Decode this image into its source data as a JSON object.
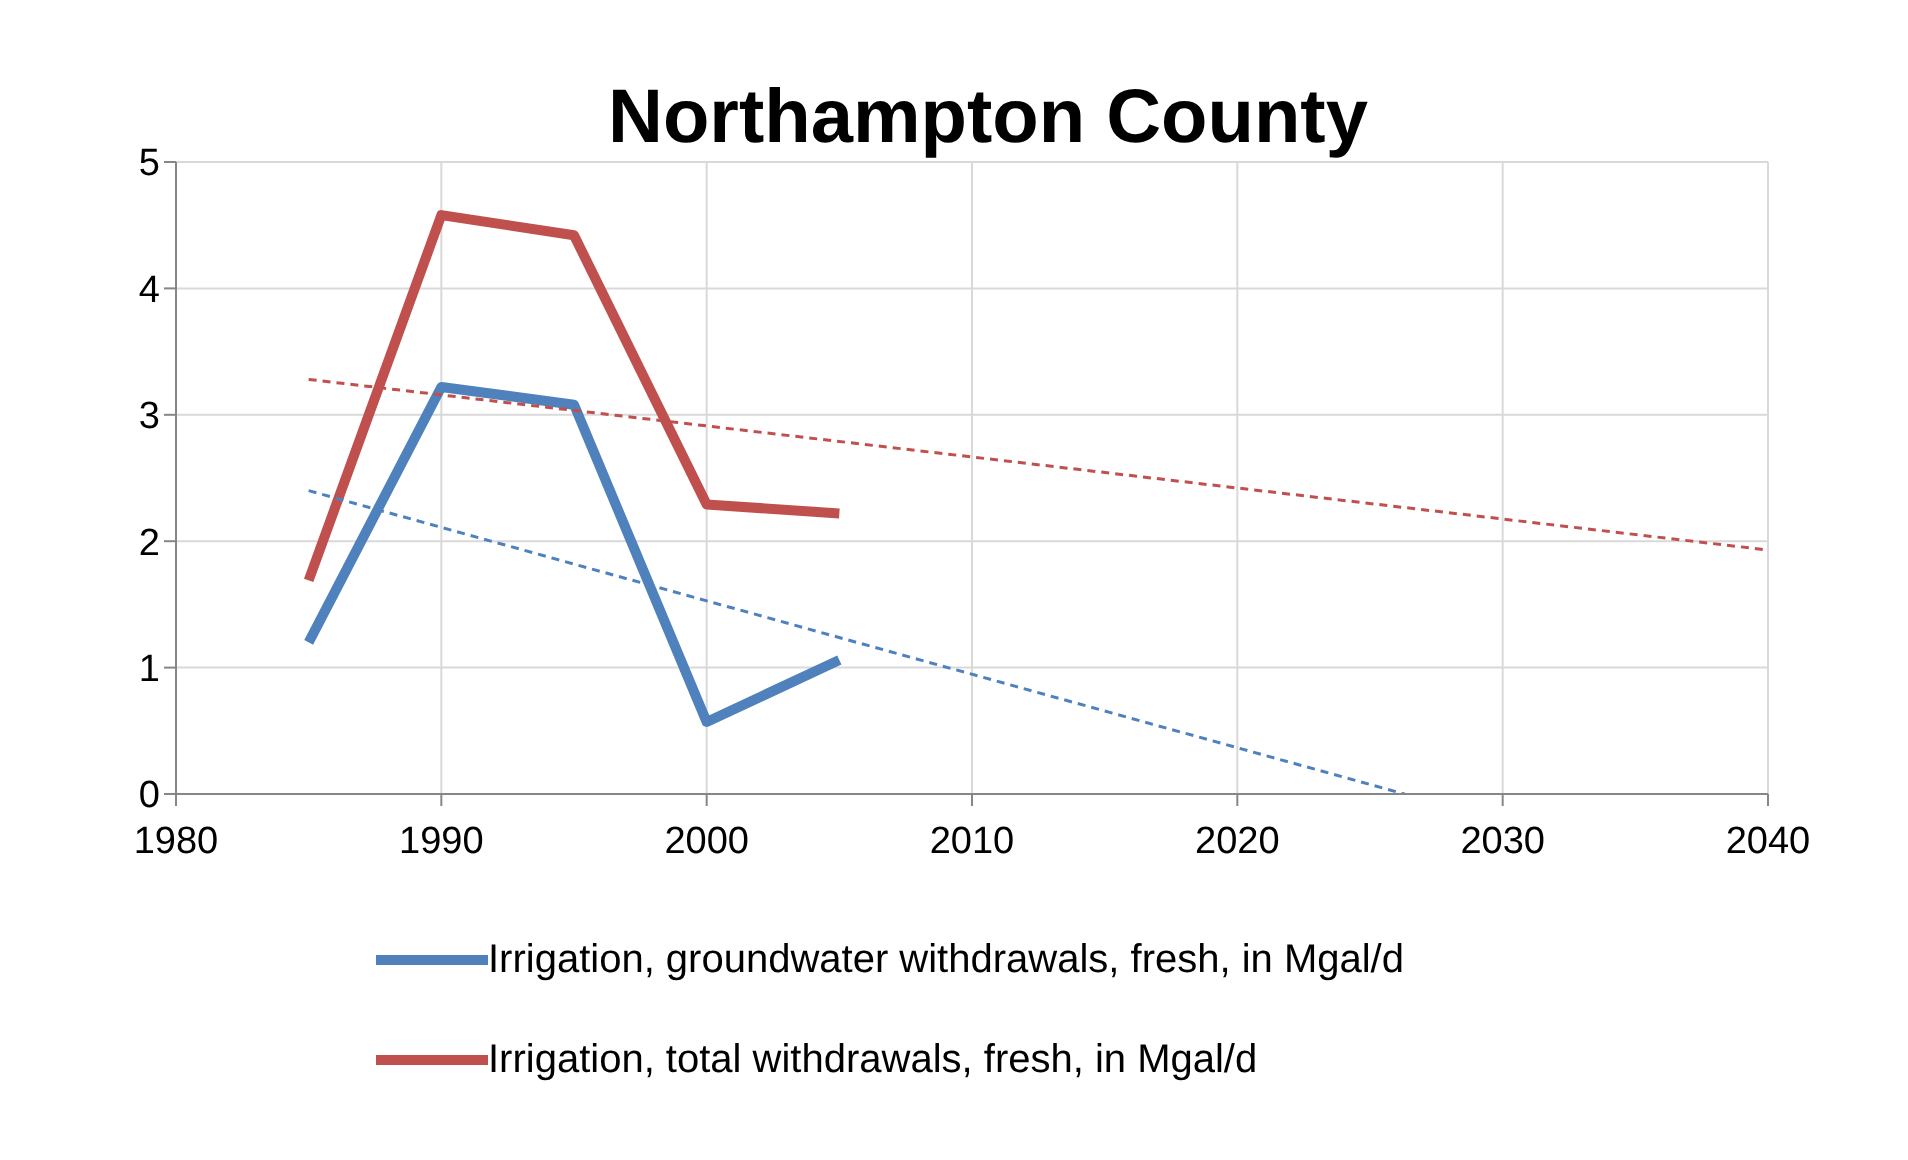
{
  "chart_data": {
    "type": "line",
    "title": "Northampton County",
    "xlim": [
      1980,
      2040
    ],
    "xticks": [
      1980,
      1990,
      2000,
      2010,
      2020,
      2030,
      2040
    ],
    "ylim": [
      0,
      5
    ],
    "yticks": [
      0,
      1,
      2,
      3,
      4,
      5
    ],
    "grid": true,
    "legend": "bottom",
    "marker": "none",
    "series": [
      {
        "name": "Irrigation, groundwater withdrawals, fresh, in Mgal/d",
        "color": "#4f81bd",
        "x": [
          1985,
          1990,
          1995,
          2000,
          2005
        ],
        "values": [
          1.2,
          3.22,
          3.08,
          0.57,
          1.06
        ]
      },
      {
        "name": "Irrigation, total withdrawals, fresh, in Mgal/d",
        "color": "#c0504d",
        "x": [
          1985,
          1990,
          1995,
          2000,
          2005
        ],
        "values": [
          1.69,
          4.58,
          4.42,
          2.29,
          2.22
        ]
      },
      {
        "type": "line",
        "line_style": "dashed",
        "color": "#4f81bd",
        "x": [
          1985,
          2026.3
        ],
        "values": [
          2.4,
          0
        ]
      },
      {
        "type": "line",
        "line_style": "dashed",
        "color": "#c0504d",
        "x": [
          1985,
          2040
        ],
        "values": [
          3.28,
          1.93
        ]
      }
    ]
  }
}
